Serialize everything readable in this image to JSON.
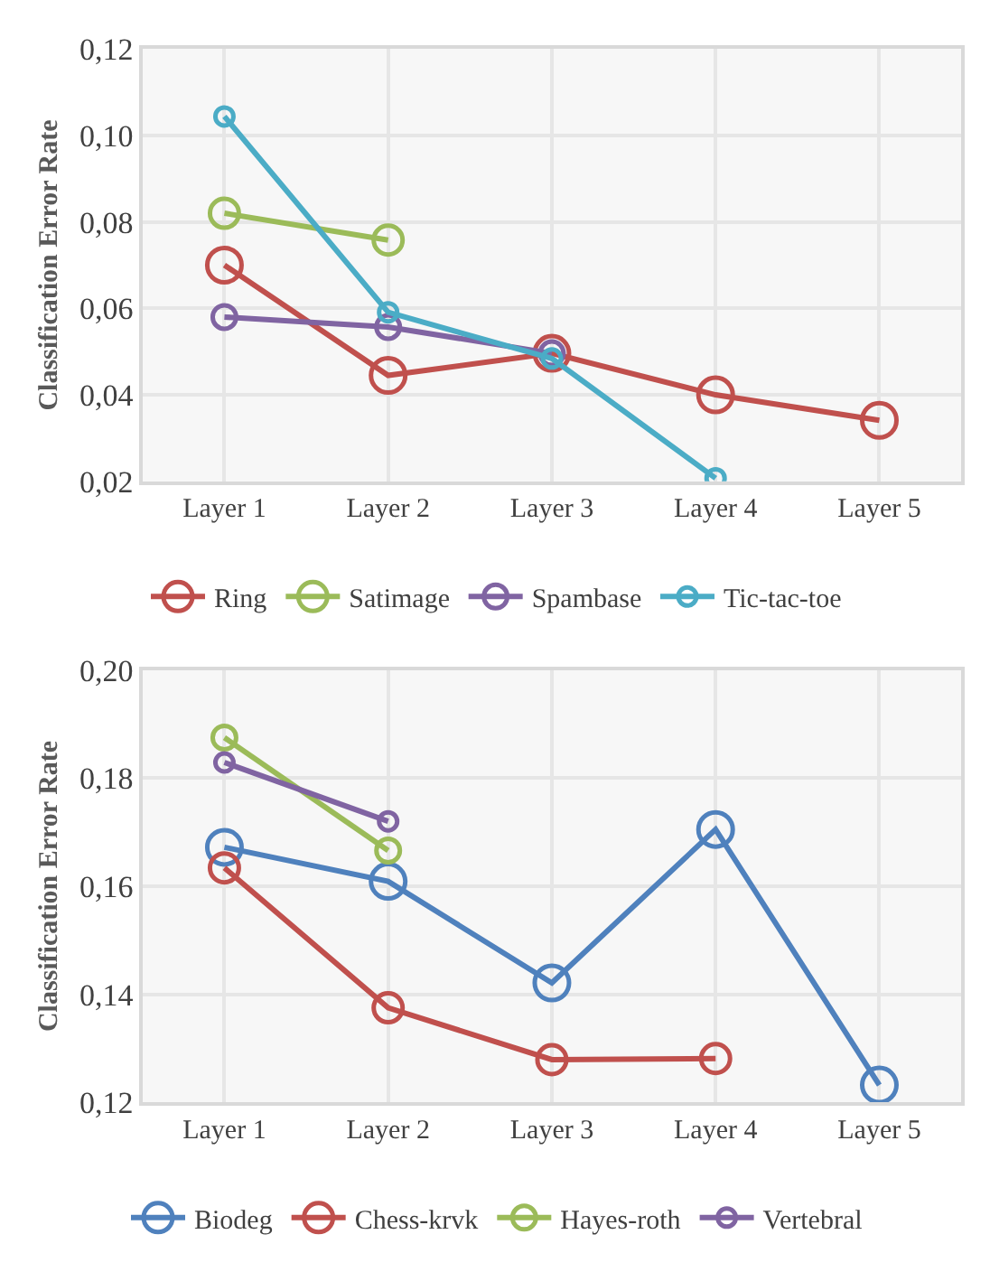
{
  "chart_data": [
    {
      "type": "line",
      "ylabel": "Classification Error Rate",
      "categories": [
        "Layer 1",
        "Layer 2",
        "Layer 3",
        "Layer 4",
        "Layer 5"
      ],
      "series": [
        {
          "name": "Ring",
          "color": "#c0504d",
          "values": [
            0.07,
            0.0445,
            0.0496,
            0.04,
            0.0341
          ]
        },
        {
          "name": "Satimage",
          "color": "#9bbb59",
          "values": [
            0.082,
            0.0758,
            null,
            null,
            null
          ]
        },
        {
          "name": "Spambase",
          "color": "#8064a2",
          "values": [
            0.058,
            0.0557,
            0.0496,
            null,
            null
          ]
        },
        {
          "name": "Tic-tac-toe",
          "color": "#4bacc6",
          "values": [
            0.1044,
            0.0591,
            0.0484,
            0.0207,
            null
          ]
        }
      ],
      "ylim": [
        0.02,
        0.12
      ],
      "yticks": [
        {
          "value": 0.02,
          "label": "0,02"
        },
        {
          "value": 0.04,
          "label": "0,04"
        },
        {
          "value": 0.06,
          "label": "0,06"
        },
        {
          "value": 0.08,
          "label": "0,08"
        },
        {
          "value": 0.1,
          "label": "0,10"
        },
        {
          "value": 0.12,
          "label": "0,12"
        }
      ],
      "grid": true,
      "legend": "bottom",
      "marker": "circle",
      "line_style": "solid"
    },
    {
      "type": "line",
      "ylabel": "Classification Error Rate",
      "categories": [
        "Layer 1",
        "Layer 2",
        "Layer 3",
        "Layer 4",
        "Layer 5"
      ],
      "series": [
        {
          "name": "Biodeg",
          "color": "#4f81bd",
          "values": [
            0.1672,
            0.1609,
            0.1421,
            0.1705,
            0.1232
          ]
        },
        {
          "name": "Chess-krvk",
          "color": "#c0504d",
          "values": [
            0.1634,
            0.1375,
            0.1279,
            0.1281,
            null
          ]
        },
        {
          "name": "Hayes-roth",
          "color": "#9bbb59",
          "values": [
            0.1875,
            0.1666,
            null,
            null,
            null
          ]
        },
        {
          "name": "Vertebral",
          "color": "#8064a2",
          "values": [
            0.1829,
            0.172,
            null,
            null,
            null
          ]
        }
      ],
      "ylim": [
        0.12,
        0.2
      ],
      "yticks": [
        {
          "value": 0.12,
          "label": "0,12"
        },
        {
          "value": 0.14,
          "label": "0,14"
        },
        {
          "value": 0.16,
          "label": "0,16"
        },
        {
          "value": 0.18,
          "label": "0,18"
        },
        {
          "value": 0.2,
          "label": "0,20"
        }
      ],
      "grid": true,
      "legend": "bottom",
      "marker": "circle",
      "line_style": "solid"
    }
  ]
}
